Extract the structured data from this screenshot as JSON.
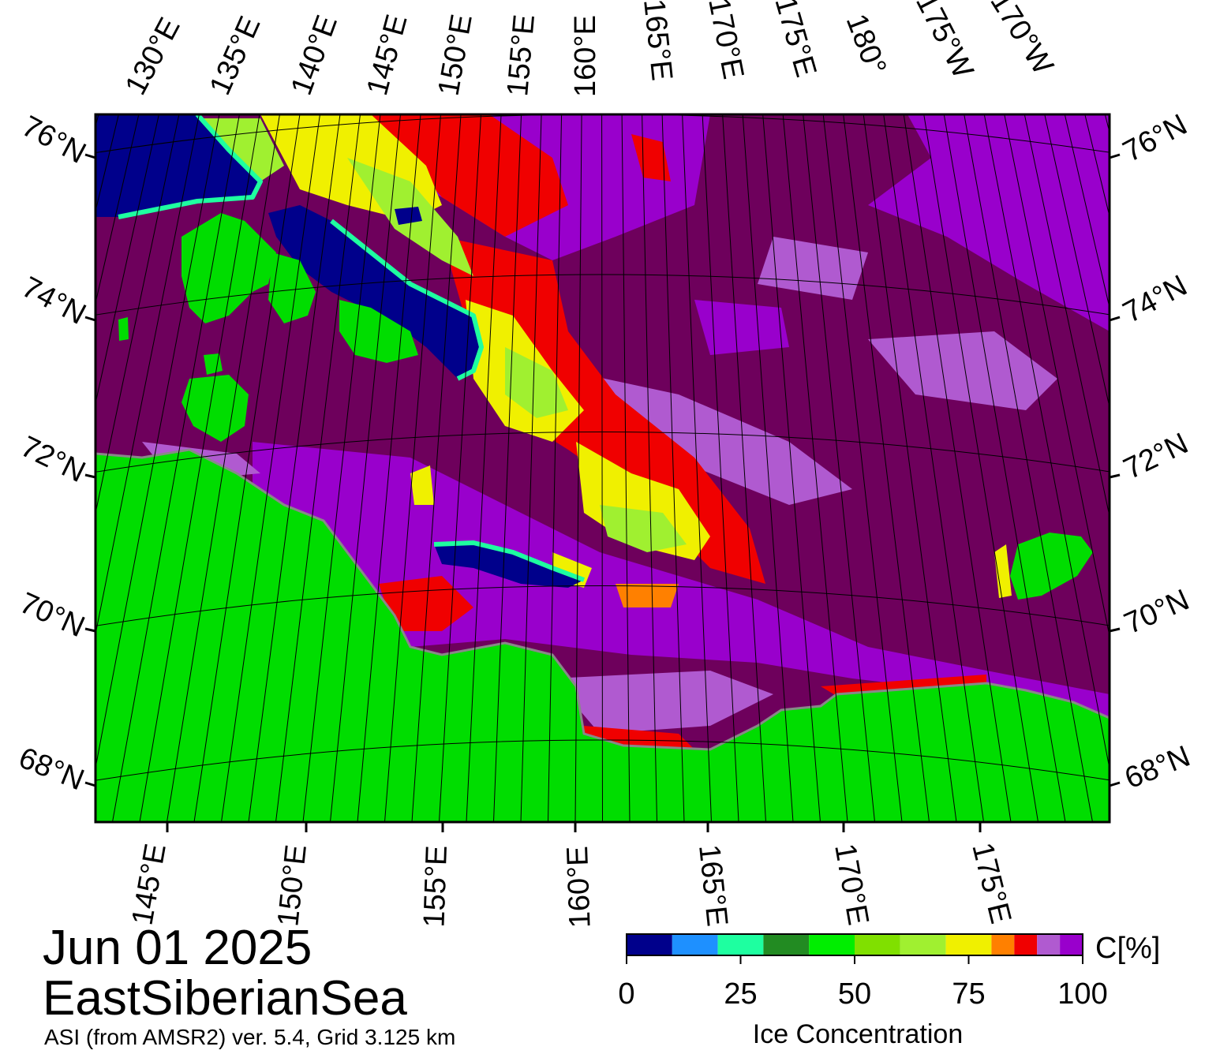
{
  "caption": {
    "date": "Jun 01 2025",
    "region": "EastSiberianSea",
    "source": "ASI (from AMSR2) ver. 5.4,  Grid 3.125 km"
  },
  "map": {
    "colors": {
      "land": "#00dd00",
      "coast_gray": "#888888",
      "water_high_ice": "#6e005c",
      "purple": "#9900cc",
      "light_purple": "#b05ad0",
      "open_water": "#00008b",
      "red": "#f00000",
      "orange": "#ff8000",
      "yellow": "#f0f000",
      "yellow_green": "#a0f030",
      "green": "#80e000",
      "cyan": "#1effa0",
      "blue": "#1e90ff"
    },
    "top_longitude_labels": [
      "130°E",
      "135°E",
      "140°E",
      "145°E",
      "150°E",
      "155°E",
      "160°E",
      "165°E",
      "170°E",
      "175°E",
      "180°",
      "175°W",
      "170°W"
    ],
    "bottom_longitude_labels": [
      "145°E",
      "150°E",
      "155°E",
      "160°E",
      "165°E",
      "170°E",
      "175°E"
    ],
    "latitude_labels": [
      "76°N",
      "74°N",
      "72°N",
      "70°N",
      "68°N"
    ]
  },
  "colorbar": {
    "label": "Ice Concentration",
    "unit": "C[%]",
    "ticks": [
      "0",
      "25",
      "50",
      "75",
      "100"
    ],
    "bins": [
      {
        "from": 0,
        "to": 10,
        "color": "#00008b"
      },
      {
        "from": 10,
        "to": 20,
        "color": "#1e90ff"
      },
      {
        "from": 20,
        "to": 30,
        "color": "#1effa0"
      },
      {
        "from": 30,
        "to": 40,
        "color": "#228b22"
      },
      {
        "from": 40,
        "to": 50,
        "color": "#00ee00"
      },
      {
        "from": 50,
        "to": 60,
        "color": "#80e000"
      },
      {
        "from": 60,
        "to": 70,
        "color": "#a0f030"
      },
      {
        "from": 70,
        "to": 80,
        "color": "#f0f000"
      },
      {
        "from": 80,
        "to": 85,
        "color": "#ff8000"
      },
      {
        "from": 85,
        "to": 90,
        "color": "#f00000"
      },
      {
        "from": 90,
        "to": 95,
        "color": "#b05ad0"
      },
      {
        "from": 95,
        "to": 100,
        "color": "#9900cc"
      }
    ]
  }
}
